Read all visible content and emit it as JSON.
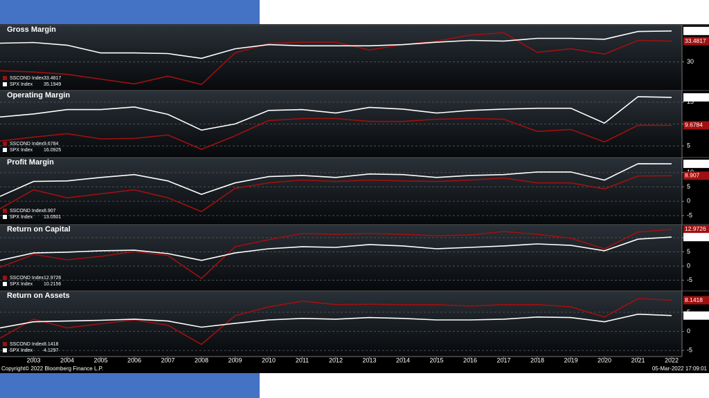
{
  "chart_data": [
    {
      "type": "line",
      "title": "Gross Margin",
      "x": [
        2002,
        2003,
        2004,
        2005,
        2006,
        2007,
        2008,
        2009,
        2010,
        2011,
        2012,
        2013,
        2014,
        2015,
        2016,
        2017,
        2018,
        2019,
        2020,
        2021,
        2022
      ],
      "xlim": [
        2002,
        2022
      ],
      "ylim": [
        25.3,
        36.1
      ],
      "yticks": [
        30
      ],
      "grid": true,
      "series": [
        {
          "name": "SSCOND Index",
          "color": "#a01010",
          "values": [
            28.5,
            28.3,
            27.9,
            27.1,
            26.3,
            27.6,
            26.2,
            31.5,
            33.1,
            33.3,
            33.3,
            32.0,
            32.9,
            33.5,
            34.5,
            34.9,
            31.6,
            32.2,
            31.3,
            33.6,
            33.4817
          ]
        },
        {
          "name": "SPX Index",
          "color": "#ffffff",
          "values": [
            33.14,
            33.26,
            32.8,
            31.5,
            31.5,
            31.4,
            30.6,
            32.2,
            32.9,
            32.7,
            32.7,
            32.7,
            32.9,
            33.3,
            33.6,
            33.5,
            33.95,
            33.95,
            33.8,
            35.1,
            35.1949
          ]
        }
      ]
    },
    {
      "type": "line",
      "title": "Operating Margin",
      "x": [
        2002,
        2003,
        2004,
        2005,
        2006,
        2007,
        2008,
        2009,
        2010,
        2011,
        2012,
        2013,
        2014,
        2015,
        2016,
        2017,
        2018,
        2019,
        2020,
        2021,
        2022
      ],
      "xlim": [
        2002,
        2022
      ],
      "ylim": [
        2.8,
        17.5
      ],
      "yticks": [
        5,
        10,
        15
      ],
      "grid": true,
      "series": [
        {
          "name": "SSCOND Index",
          "color": "#a01010",
          "values": [
            6.1,
            7.0,
            7.8,
            6.6,
            6.7,
            7.5,
            4.2,
            7.3,
            10.8,
            11.25,
            11.25,
            10.6,
            10.6,
            11.1,
            11.25,
            11.1,
            8.3,
            8.75,
            5.9,
            9.7,
            9.6784
          ]
        },
        {
          "name": "SPX Index",
          "color": "#ffffff",
          "values": [
            11.6,
            12.3,
            13.3,
            13.3,
            13.9,
            12.2,
            8.6,
            10.0,
            13.1,
            13.3,
            12.5,
            13.8,
            13.4,
            12.5,
            13.1,
            13.4,
            13.6,
            13.6,
            10.2,
            16.25,
            16.0925
          ]
        }
      ]
    },
    {
      "type": "line",
      "title": "Profit Margin",
      "x": [
        2002,
        2003,
        2004,
        2005,
        2006,
        2007,
        2008,
        2009,
        2010,
        2011,
        2012,
        2013,
        2014,
        2015,
        2016,
        2017,
        2018,
        2019,
        2020,
        2021,
        2022
      ],
      "xlim": [
        2002,
        2022
      ],
      "ylim": [
        -7.4,
        15
      ],
      "yticks": [
        -5,
        0,
        5,
        10
      ],
      "grid": true,
      "series": [
        {
          "name": "SSCOND Index",
          "color": "#a01010",
          "values": [
            -2.6,
            4.0,
            1.2,
            2.6,
            4.0,
            1.2,
            -3.6,
            4.5,
            6.4,
            7.4,
            6.9,
            7.4,
            7.1,
            6.9,
            7.4,
            8.1,
            6.4,
            6.4,
            4.3,
            8.8,
            8.907
          ]
        },
        {
          "name": "SPX Index",
          "color": "#ffffff",
          "values": [
            1.7,
            6.9,
            7.1,
            8.3,
            9.3,
            7.1,
            2.4,
            6.4,
            8.6,
            9.0,
            8.3,
            9.5,
            9.3,
            8.3,
            9.0,
            9.3,
            10.2,
            10.2,
            7.4,
            13.1,
            13.0501
          ]
        }
      ]
    },
    {
      "type": "line",
      "title": "Return on Capital",
      "x": [
        2002,
        2003,
        2004,
        2005,
        2006,
        2007,
        2008,
        2009,
        2010,
        2011,
        2012,
        2013,
        2014,
        2015,
        2016,
        2017,
        2018,
        2019,
        2020,
        2021,
        2022
      ],
      "xlim": [
        2002,
        2022
      ],
      "ylim": [
        -8.3,
        14.4
      ],
      "yticks": [
        -5,
        0,
        5,
        10
      ],
      "grid": true,
      "series": [
        {
          "name": "SSCOND Index",
          "color": "#a01010",
          "values": [
            -0.5,
            4.1,
            2.2,
            3.4,
            5.1,
            3.7,
            -4.4,
            6.8,
            9.3,
            11.5,
            11.2,
            11.5,
            11.2,
            10.7,
            11.0,
            12.2,
            11.2,
            9.8,
            6.1,
            12.0,
            12.9726
          ]
        },
        {
          "name": "SPX Index",
          "color": "#ffffff",
          "values": [
            2.0,
            4.6,
            4.9,
            5.4,
            5.6,
            4.4,
            2.0,
            4.6,
            6.1,
            6.8,
            6.6,
            7.6,
            7.1,
            6.1,
            6.6,
            7.1,
            7.8,
            7.3,
            5.4,
            9.5,
            10.2156
          ]
        }
      ]
    },
    {
      "type": "line",
      "title": "Return on Assets",
      "x": [
        2002,
        2003,
        2004,
        2005,
        2006,
        2007,
        2008,
        2009,
        2010,
        2011,
        2012,
        2013,
        2014,
        2015,
        2016,
        2017,
        2018,
        2019,
        2020,
        2021,
        2022
      ],
      "xlim": [
        2002,
        2022
      ],
      "ylim": [
        -6.4,
        10.4
      ],
      "yticks": [
        -5,
        0,
        5
      ],
      "grid": true,
      "xticks": [
        2003,
        2004,
        2005,
        2006,
        2007,
        2008,
        2009,
        2010,
        2011,
        2012,
        2013,
        2014,
        2015,
        2016,
        2017,
        2018,
        2019,
        2020,
        2021,
        2022
      ],
      "series": [
        {
          "name": "SSCOND Index",
          "color": "#a01010",
          "values": [
            -1.8,
            3.2,
            0.9,
            2.0,
            3.0,
            1.6,
            -3.4,
            4.1,
            6.4,
            7.9,
            7.0,
            7.1,
            7.0,
            7.0,
            6.6,
            7.0,
            7.0,
            6.4,
            3.75,
            8.6,
            8.1418
          ]
        },
        {
          "name": "SPX Index",
          "color": "#ffffff",
          "values": [
            0.9,
            2.5,
            2.7,
            2.9,
            3.2,
            2.7,
            1.1,
            2.1,
            3.0,
            3.4,
            3.2,
            3.6,
            3.4,
            3.0,
            3.0,
            3.2,
            3.75,
            3.6,
            2.5,
            4.5,
            4.1297
          ]
        }
      ]
    }
  ],
  "footer": {
    "copyright": "Copyright© 2022 Bloomberg Finance L.P.",
    "timestamp": "05-Mar-2022 17:09:01"
  }
}
